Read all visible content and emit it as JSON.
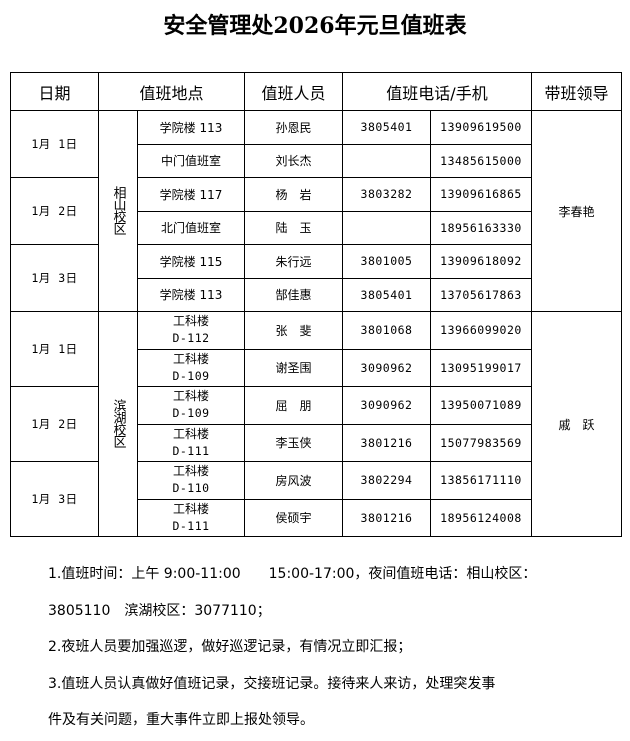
{
  "title": "安全管理处2026年元旦值班表",
  "headers": [
    "日期",
    "值班地点",
    "值班人员",
    "值班电话/手机",
    "带班领导"
  ],
  "campuses": [
    {
      "name": "相山校区",
      "leader": "李春艳",
      "days": [
        {
          "date": "1月 1日",
          "rows": [
            {
              "place": "学院楼 113",
              "person": "孙恩民",
              "phone": "3805401",
              "mobile": "13909619500"
            },
            {
              "place": "中门值班室",
              "person": "刘长杰",
              "phone": "",
              "mobile": "13485615000"
            }
          ]
        },
        {
          "date": "1月 2日",
          "rows": [
            {
              "place": "学院楼 117",
              "person": "杨　岩",
              "phone": "3803282",
              "mobile": "13909616865"
            },
            {
              "place": "北门值班室",
              "person": "陆　玉",
              "phone": "",
              "mobile": "18956163330"
            }
          ]
        },
        {
          "date": "1月 3日",
          "rows": [
            {
              "place": "学院楼 115",
              "person": "朱行远",
              "phone": "3801005",
              "mobile": "13909618092"
            },
            {
              "place": "学院楼 113",
              "person": "郜佳惠",
              "phone": "3805401",
              "mobile": "13705617863"
            }
          ]
        }
      ]
    },
    {
      "name": "滨湖校区",
      "leader": "戚　跃",
      "days": [
        {
          "date": "1月 1日",
          "rows": [
            {
              "place": "工科楼",
              "room": "D-112",
              "person": "张　斐",
              "phone": "3801068",
              "mobile": "13966099020"
            },
            {
              "place": "工科楼",
              "room": "D-109",
              "person": "谢圣围",
              "phone": "3090962",
              "mobile": "13095199017"
            }
          ]
        },
        {
          "date": "1月 2日",
          "rows": [
            {
              "place": "工科楼",
              "room": "D-109",
              "person": "屈　朋",
              "phone": "3090962",
              "mobile": "13950071089"
            },
            {
              "place": "工科楼",
              "room": "D-111",
              "person": "李玉侠",
              "phone": "3801216",
              "mobile": "15077983569"
            }
          ]
        },
        {
          "date": "1月 3日",
          "rows": [
            {
              "place": "工科楼",
              "room": "D-110",
              "person": "房风波",
              "phone": "3802294",
              "mobile": "13856171110"
            },
            {
              "place": "工科楼",
              "room": "D-111",
              "person": "侯硕宇",
              "phone": "3801216",
              "mobile": "18956124008"
            }
          ]
        }
      ]
    }
  ],
  "notes": [
    "1.值班时间：上午 9:00-11:00　　15:00-17:00，夜间值班电话：相山校区：",
    "3805110　滨湖校区：3077110；",
    "2.夜班人员要加强巡逻，做好巡逻记录，有情况立即汇报；",
    "3.值班人员认真做好值班记录，交接班记录。接待来人来访，处理突发事",
    "件及有关问题，重大事件立即上报处领导。"
  ]
}
